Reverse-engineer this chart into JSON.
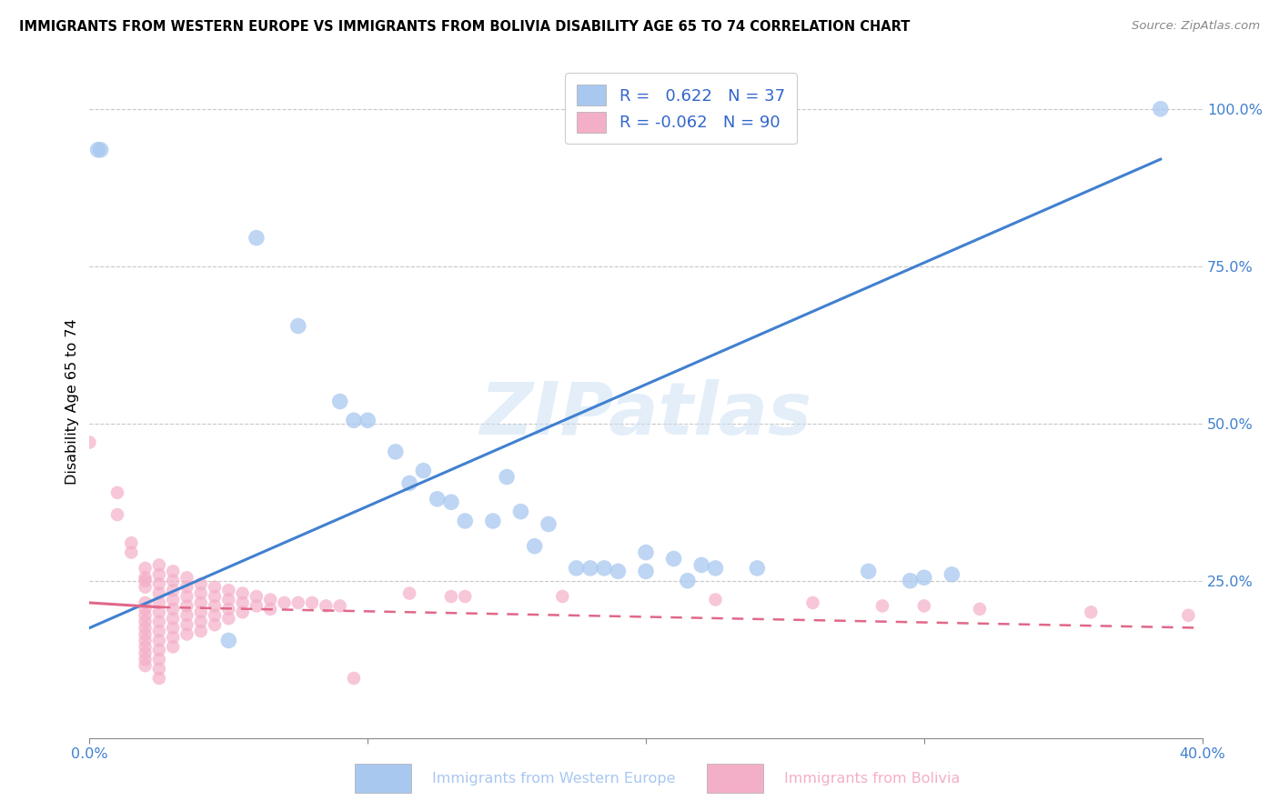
{
  "title": "IMMIGRANTS FROM WESTERN EUROPE VS IMMIGRANTS FROM BOLIVIA DISABILITY AGE 65 TO 74 CORRELATION CHART",
  "source": "Source: ZipAtlas.com",
  "xlabel_blue": "Immigrants from Western Europe",
  "xlabel_pink": "Immigrants from Bolivia",
  "ylabel": "Disability Age 65 to 74",
  "xlim": [
    0.0,
    0.4
  ],
  "ylim": [
    0.0,
    1.05
  ],
  "r_blue": 0.622,
  "n_blue": 37,
  "r_pink": -0.062,
  "n_pink": 90,
  "blue_color": "#a8c8f0",
  "pink_color": "#f4afc8",
  "blue_line_color": "#4080d0",
  "pink_line_color": "#e06888",
  "blue_line": [
    0.0,
    0.175,
    0.385,
    0.92
  ],
  "pink_line_solid": [
    0.0,
    0.215,
    0.025,
    0.208
  ],
  "pink_line_dash": [
    0.025,
    0.208,
    0.4,
    0.175
  ],
  "watermark": "ZIPatlas",
  "blue_scatter": [
    [
      0.003,
      0.935
    ],
    [
      0.004,
      0.935
    ],
    [
      0.05,
      0.155
    ],
    [
      0.06,
      0.795
    ],
    [
      0.075,
      0.655
    ],
    [
      0.09,
      0.535
    ],
    [
      0.095,
      0.505
    ],
    [
      0.1,
      0.505
    ],
    [
      0.11,
      0.455
    ],
    [
      0.115,
      0.405
    ],
    [
      0.12,
      0.425
    ],
    [
      0.125,
      0.38
    ],
    [
      0.13,
      0.375
    ],
    [
      0.135,
      0.345
    ],
    [
      0.145,
      0.345
    ],
    [
      0.15,
      0.415
    ],
    [
      0.155,
      0.36
    ],
    [
      0.16,
      0.305
    ],
    [
      0.165,
      0.34
    ],
    [
      0.175,
      0.27
    ],
    [
      0.18,
      0.27
    ],
    [
      0.185,
      0.27
    ],
    [
      0.19,
      0.265
    ],
    [
      0.2,
      0.265
    ],
    [
      0.2,
      0.295
    ],
    [
      0.21,
      0.285
    ],
    [
      0.215,
      0.25
    ],
    [
      0.22,
      0.275
    ],
    [
      0.225,
      0.27
    ],
    [
      0.24,
      0.27
    ],
    [
      0.28,
      0.265
    ],
    [
      0.295,
      0.25
    ],
    [
      0.3,
      0.255
    ],
    [
      0.31,
      0.26
    ],
    [
      0.385,
      1.0
    ]
  ],
  "pink_scatter_dense": [
    [
      0.0,
      0.47
    ],
    [
      0.01,
      0.39
    ],
    [
      0.01,
      0.355
    ],
    [
      0.015,
      0.31
    ],
    [
      0.015,
      0.295
    ],
    [
      0.02,
      0.27
    ],
    [
      0.02,
      0.255
    ],
    [
      0.02,
      0.24
    ],
    [
      0.02,
      0.25
    ],
    [
      0.02,
      0.215
    ],
    [
      0.02,
      0.205
    ],
    [
      0.02,
      0.195
    ],
    [
      0.02,
      0.185
    ],
    [
      0.02,
      0.175
    ],
    [
      0.02,
      0.165
    ],
    [
      0.02,
      0.155
    ],
    [
      0.02,
      0.145
    ],
    [
      0.02,
      0.135
    ],
    [
      0.02,
      0.125
    ],
    [
      0.02,
      0.115
    ],
    [
      0.025,
      0.275
    ],
    [
      0.025,
      0.26
    ],
    [
      0.025,
      0.245
    ],
    [
      0.025,
      0.23
    ],
    [
      0.025,
      0.215
    ],
    [
      0.025,
      0.2
    ],
    [
      0.025,
      0.185
    ],
    [
      0.025,
      0.17
    ],
    [
      0.025,
      0.155
    ],
    [
      0.025,
      0.14
    ],
    [
      0.025,
      0.125
    ],
    [
      0.025,
      0.11
    ],
    [
      0.025,
      0.095
    ],
    [
      0.03,
      0.265
    ],
    [
      0.03,
      0.25
    ],
    [
      0.03,
      0.235
    ],
    [
      0.03,
      0.22
    ],
    [
      0.03,
      0.205
    ],
    [
      0.03,
      0.19
    ],
    [
      0.03,
      0.175
    ],
    [
      0.03,
      0.16
    ],
    [
      0.03,
      0.145
    ],
    [
      0.035,
      0.255
    ],
    [
      0.035,
      0.24
    ],
    [
      0.035,
      0.225
    ],
    [
      0.035,
      0.21
    ],
    [
      0.035,
      0.195
    ],
    [
      0.035,
      0.18
    ],
    [
      0.035,
      0.165
    ],
    [
      0.04,
      0.245
    ],
    [
      0.04,
      0.23
    ],
    [
      0.04,
      0.215
    ],
    [
      0.04,
      0.2
    ],
    [
      0.04,
      0.185
    ],
    [
      0.04,
      0.17
    ],
    [
      0.045,
      0.24
    ],
    [
      0.045,
      0.225
    ],
    [
      0.045,
      0.21
    ],
    [
      0.045,
      0.195
    ],
    [
      0.045,
      0.18
    ],
    [
      0.05,
      0.235
    ],
    [
      0.05,
      0.22
    ],
    [
      0.05,
      0.205
    ],
    [
      0.05,
      0.19
    ],
    [
      0.055,
      0.23
    ],
    [
      0.055,
      0.215
    ],
    [
      0.055,
      0.2
    ],
    [
      0.06,
      0.225
    ],
    [
      0.06,
      0.21
    ],
    [
      0.065,
      0.22
    ],
    [
      0.065,
      0.205
    ],
    [
      0.07,
      0.215
    ],
    [
      0.075,
      0.215
    ],
    [
      0.08,
      0.215
    ],
    [
      0.085,
      0.21
    ],
    [
      0.09,
      0.21
    ],
    [
      0.095,
      0.095
    ],
    [
      0.115,
      0.23
    ],
    [
      0.13,
      0.225
    ],
    [
      0.135,
      0.225
    ],
    [
      0.17,
      0.225
    ],
    [
      0.225,
      0.22
    ],
    [
      0.26,
      0.215
    ],
    [
      0.285,
      0.21
    ],
    [
      0.3,
      0.21
    ],
    [
      0.32,
      0.205
    ],
    [
      0.36,
      0.2
    ],
    [
      0.395,
      0.195
    ]
  ]
}
